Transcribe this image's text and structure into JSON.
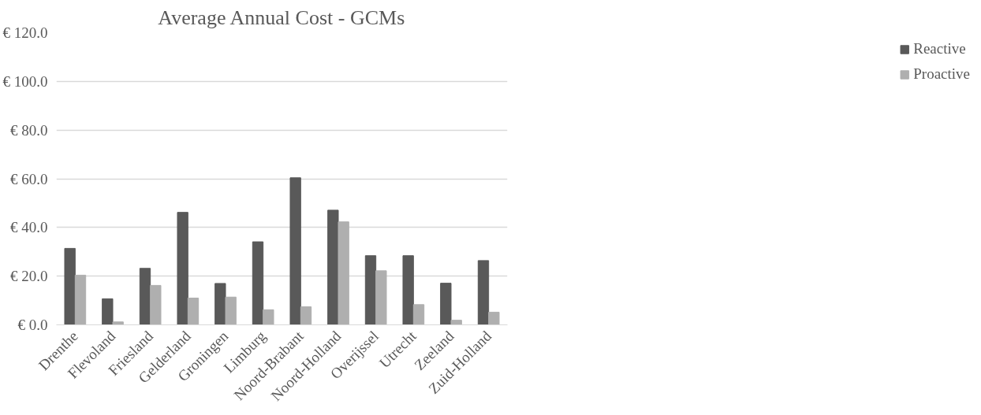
{
  "chart_data": {
    "type": "bar",
    "title": "Average Annual Cost - GCMs",
    "categories": [
      "Drenthe",
      "Flevoland",
      "Friesland",
      "Gelderland",
      "Groningen",
      "Limburg",
      "Noord-Brabant",
      "Noord-Holland",
      "Overijssel",
      "Utrecht",
      "Zeeland",
      "Zuid-Holland"
    ],
    "series": [
      {
        "name": "Reactive",
        "color": "#595959",
        "values": [
          31.4,
          10.7,
          23.2,
          46.2,
          17.0,
          34.1,
          60.4,
          47.1,
          28.4,
          28.4,
          17.1,
          26.4
        ]
      },
      {
        "name": "Proactive",
        "color": "#afafaf",
        "values": [
          20.4,
          1.2,
          16.2,
          11.0,
          11.4,
          6.2,
          7.4,
          42.3,
          22.2,
          8.3,
          1.9,
          5.2
        ]
      }
    ],
    "ylim": [
      0,
      120
    ],
    "yticks": [
      {
        "value": 0,
        "label": "€ 0.0"
      },
      {
        "value": 20,
        "label": "€ 20.0"
      },
      {
        "value": 40,
        "label": "€ 40.0"
      },
      {
        "value": 60,
        "label": "€ 60.0"
      },
      {
        "value": 80,
        "label": "€ 80.0"
      },
      {
        "value": 100,
        "label": "€ 100.0"
      },
      {
        "value": 120,
        "label": "€ 120.0"
      }
    ],
    "grid": "y",
    "legend": "right"
  }
}
